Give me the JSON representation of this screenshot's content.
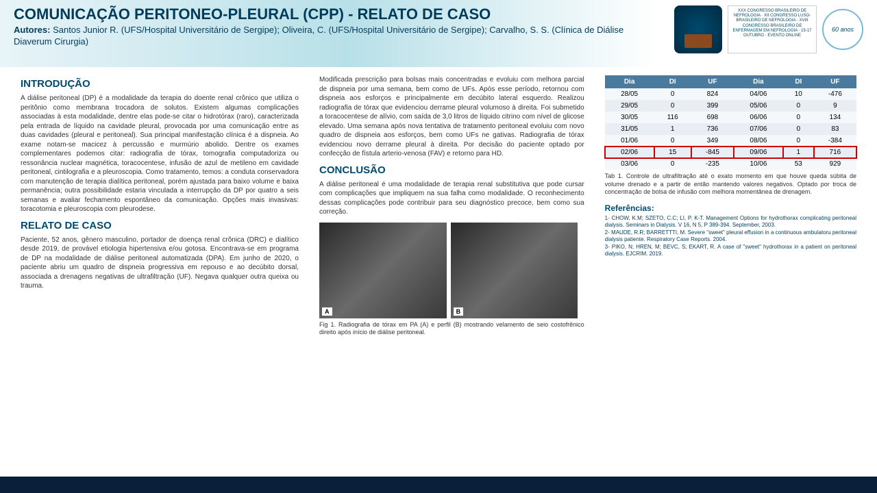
{
  "header": {
    "title": "COMUNICAÇÃO PERITONEO-PLEURAL (CPP) - RELATO DE CASO",
    "authors_label": "Autores:",
    "authors": " Santos Junior R. (UFS/Hospital Universitário de Sergipe); Oliveira, C. (UFS/Hospital Universitário de Sergipe); Carvalho, S. S. (Clínica de Diálise Diaverum Cirurgia)",
    "logo2_text": "XXX CONGRESSO BRASILEIRO DE NEFROLOGIA · XII CONGRESSO LUSO-BRASILEIRO DE NEFROLOGIA · XVIII CONGRESSO BRASILEIRO DE ENFERMAGEM EM NEFROLOGIA · 15-17 OUTUBRO · EVENTO ONLINE",
    "logo3_text": "60 anos"
  },
  "sections": {
    "intro_h": "INTRODUÇÃO",
    "intro_p": "A diálise peritoneal (DP) é a modalidade da terapia do doente renal crônico que utiliza o peritônio como membrana trocadora de solutos. Existem algumas complicações associadas à esta modalidade, dentre elas pode-se citar o hidrotórax (raro), caracterizada pela entrada de líquido na cavidade pleural, provocada por uma comunicação entre as duas cavidades (pleural e peritoneal). Sua principal manifestação clínica é a dispneia. Ao exame notam-se macicez à percussão e murmúrio abolido. Dentre os exames complementares podemos citar: radiografia de tórax, tomografia computadoriza ou ressonância nuclear magnética, toracocentese, infusão de azul de metileno em cavidade peritoneal, cintilografia e a pleuroscopia. Como tratamento, temos: a conduta conservadora com manutenção de terapia dialítica peritoneal, porém ajustada para baixo volume e baixa permanência; outra possibilidade estaria vinculada a interrupção da DP por quatro a seis semanas e avaliar fechamento espontâneo da comunicação. Opções mais invasivas: toracotomia e pleuroscopia com pleurodese.",
    "caso_h": "RELATO DE CASO",
    "caso_p1": "Paciente, 52 anos, gênero masculino, portador de doença renal crônica (DRC) e dialítico desde 2019, de provável etiologia hipertensiva e/ou gotosa. Encontrava-se em programa de DP na modalidade de diálise peritoneal automatizada (DPA). Em junho de 2020, o paciente abriu um quadro de dispneia progressiva em repouso e ao decúbito dorsal, associada a drenagens negativas de ultrafiltração (UF). Negava qualquer outra queixa ou trauma.",
    "caso_p2": "Modificada prescrição para bolsas mais concentradas e evoluiu com melhora parcial de dispneia por uma semana, bem como de UFs. Após esse período, retornou com dispneia aos esforços e principalmente em decúbito lateral esquerdo. Realizou radiografia de tórax que evidenciou derrame pleural volumoso à direita. Foi submetido a toracocentese de alívio, com saída de 3,0 litros de líquido citrino com nível de glicose elevado. Uma semana após nova tentativa de tratamento peritoneal evoluiu com novo quadro de dispneia aos esforços, bem como UFs ne gativas. Radiografia de tórax evidenciou novo derrame pleural à direita. Por decisão do paciente optado por confecção de fístula arterio-venosa (FAV) e retorno para HD.",
    "concl_h": "CONCLUSÃO",
    "concl_p": "A diálise peritoneal é uma modalidade de terapia renal substitutiva que pode cursar com complicações que impliquem na sua falha como modalidade. O reconhecimento dessas complicações pode contribuir para seu diagnóstico precoce, bem como sua correção.",
    "fig_caption": "Fig 1. Radiografia de tórax em PA (A) e perfil (B) mostrando velamento de seio costofrênico direito após início de diálise peritoneal."
  },
  "table": {
    "headers": [
      "Dia",
      "DI",
      "UF",
      "Dia",
      "DI",
      "UF"
    ],
    "rows": [
      [
        "28/05",
        "0",
        "824",
        "04/06",
        "10",
        "-476"
      ],
      [
        "29/05",
        "0",
        "399",
        "05/06",
        "0",
        "9"
      ],
      [
        "30/05",
        "116",
        "698",
        "06/06",
        "0",
        "134"
      ],
      [
        "31/05",
        "1",
        "736",
        "07/06",
        "0",
        "83"
      ],
      [
        "01/06",
        "0",
        "349",
        "08/06",
        "0",
        "-384"
      ],
      [
        "02/06",
        "15",
        "-845",
        "09/06",
        "1",
        "716"
      ],
      [
        "03/06",
        "0",
        "-235",
        "10/06",
        "53",
        "929"
      ]
    ],
    "highlight_row": 5,
    "caption": "Tab 1. Controle de ultrafiltração até o exato momento em que houve queda súbita de volume drenado e a partir de então mantendo valores negativos. Optado por troca de concentração de bolsa de infusão com melhora momentânea de drenagem.",
    "header_bg": "#4a7a9e",
    "row_bg_odd": "#f5f8fb",
    "row_bg_even": "#e8eef4",
    "highlight_color": "#c00"
  },
  "refs": {
    "title": "Referências:",
    "items": [
      "1- CHOW, K.M; SZETO, C.C; LI, P. K-T. Management Options for hydrothorax complicating peritoneal dialysis. Seminars in Dialysis. V 16, N 5, P 389-394. September, 2003.",
      "2- MAUDE, R.R; BARRETTTI, M. Severe \"sweet\" pleural effusion in a continuous ambulatoru peritoneal dialysis patiente. Respiratory Case Reports. 2004.",
      "3- PIKO, N; HREN, M; BEVC, S; EKART, R. A case of \"sweet\" hydrothorax in a patient on peritoneal dialysis. EJCRIM. 2019."
    ]
  },
  "colors": {
    "primary": "#004a6e",
    "header_text": "#003c5a",
    "footer_bg": "#0a1f3a"
  }
}
